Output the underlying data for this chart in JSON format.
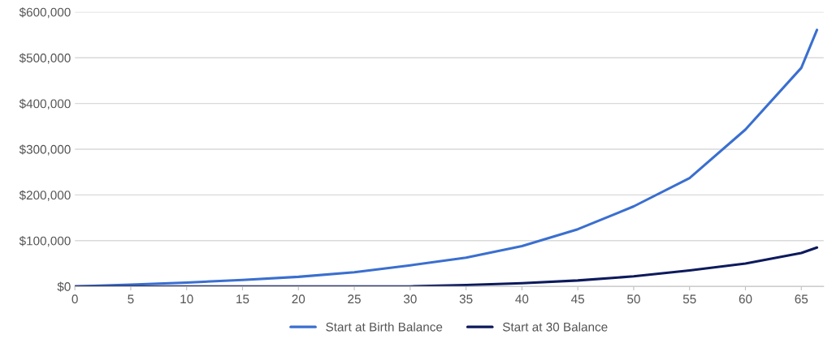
{
  "chart_data": {
    "type": "line",
    "x": [
      0,
      5,
      10,
      15,
      20,
      25,
      30,
      35,
      40,
      45,
      50,
      55,
      60,
      65,
      66.4
    ],
    "series": [
      {
        "name": "Start at Birth Balance",
        "color": "#3a6fd0",
        "values": [
          0,
          4000,
          8500,
          14000,
          21000,
          31000,
          46000,
          63000,
          88000,
          125000,
          175000,
          237000,
          343000,
          478000,
          561000
        ]
      },
      {
        "name": "Start at 30 Balance",
        "color": "#0d1a5c",
        "values": [
          0,
          0,
          0,
          0,
          0,
          0,
          0,
          3000,
          7000,
          13000,
          22000,
          35000,
          50000,
          73000,
          85000
        ]
      }
    ],
    "xlim": [
      0,
      67
    ],
    "xticks": [
      0,
      5,
      10,
      15,
      20,
      25,
      30,
      35,
      40,
      45,
      50,
      55,
      60,
      65
    ],
    "ylim": [
      0,
      600000
    ],
    "yticks": [
      {
        "value": 0,
        "label": "$0"
      },
      {
        "value": 100000,
        "label": "$100,000"
      },
      {
        "value": 200000,
        "label": "$200,000"
      },
      {
        "value": 300000,
        "label": "$300,000"
      },
      {
        "value": 400000,
        "label": "$400,000"
      },
      {
        "value": 500000,
        "label": "$500,000"
      },
      {
        "value": 600000,
        "label": "$600,000"
      }
    ],
    "grid": "y",
    "legend": "bottom",
    "marker": "none",
    "line_style": "solid"
  }
}
